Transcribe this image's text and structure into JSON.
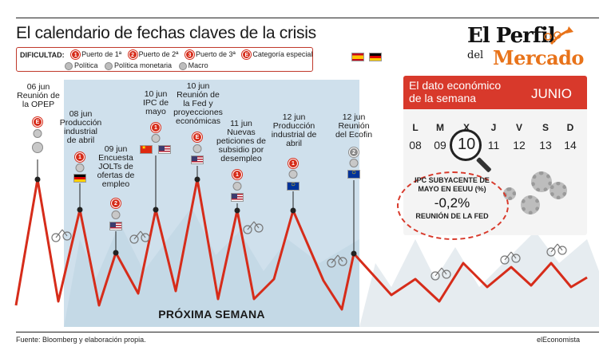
{
  "title": "El calendario de fechas claves de la crisis",
  "legend": {
    "label": "DIFICULTAD:",
    "items": [
      {
        "badge": "1",
        "label": "Puerto de 1ª"
      },
      {
        "badge": "2",
        "label": "Puerto de 2ª"
      },
      {
        "badge": "3",
        "label": "Puerto de 3ª"
      },
      {
        "badge": "E",
        "label": "Categoría especial"
      }
    ],
    "icons": [
      {
        "icon": "politica-icon",
        "label": "Política"
      },
      {
        "icon": "politica-monetaria-icon",
        "label": "Política monetaria"
      },
      {
        "icon": "macro-icon",
        "label": "Macro"
      }
    ]
  },
  "logo": {
    "line1": "El Perfil",
    "line2": "del",
    "line3": "Mercado"
  },
  "events": [
    {
      "label": "06 jun\nReunión de\nla OPEP",
      "badge": "E",
      "flag": null
    },
    {
      "label": "08 jun\nProducción\nindustrial\nde abril",
      "badge": "1",
      "flag": "de"
    },
    {
      "label": "09 jun\nEncuesta\nJOLTs de\nofertas de\nempleo",
      "badge": "2",
      "flag": "us"
    },
    {
      "label": "10 jun\nIPC de\nmayo",
      "badge": "1",
      "flag": "cn+us"
    },
    {
      "label": "10 jun\nReunión de\nla Fed y\nproyecciones\neconómicas",
      "badge": "E",
      "flag": "us"
    },
    {
      "label": "11 jun\nNuevas\npeticiones de\nsubsidio por\ndesempleo",
      "badge": "1",
      "flag": "us"
    },
    {
      "label": "12 jun\nProducción\nindustrial de\nabril",
      "badge": "1",
      "flag": "eu"
    },
    {
      "label": "12 jun\nReunión\ndel Ecofin",
      "badge": "2",
      "flag": "eu"
    }
  ],
  "next_week": "PRÓXIMA SEMANA",
  "panel": {
    "title_line1": "El dato económico",
    "title_line2": "de la semana",
    "month": "JUNIO",
    "day_headers": [
      "L",
      "M",
      "X",
      "J",
      "V",
      "S",
      "D"
    ],
    "days": [
      "08",
      "09",
      "10",
      "11",
      "12",
      "13",
      "14"
    ],
    "highlight_day": "10",
    "indicator_label": "IPC SUBYACENTE DE MAYO EN EEUU (%)",
    "indicator_value": "-0,2%",
    "indicator_sub": "REUNIÓN DE LA FED"
  },
  "source": "Fuente: Bloomberg y elaboración propia.",
  "brand": "elEconomista",
  "colors": {
    "accent": "#d8392b",
    "line": "#d62c1a",
    "band": "#cfe0ec",
    "logo_orange": "#e8731a"
  }
}
